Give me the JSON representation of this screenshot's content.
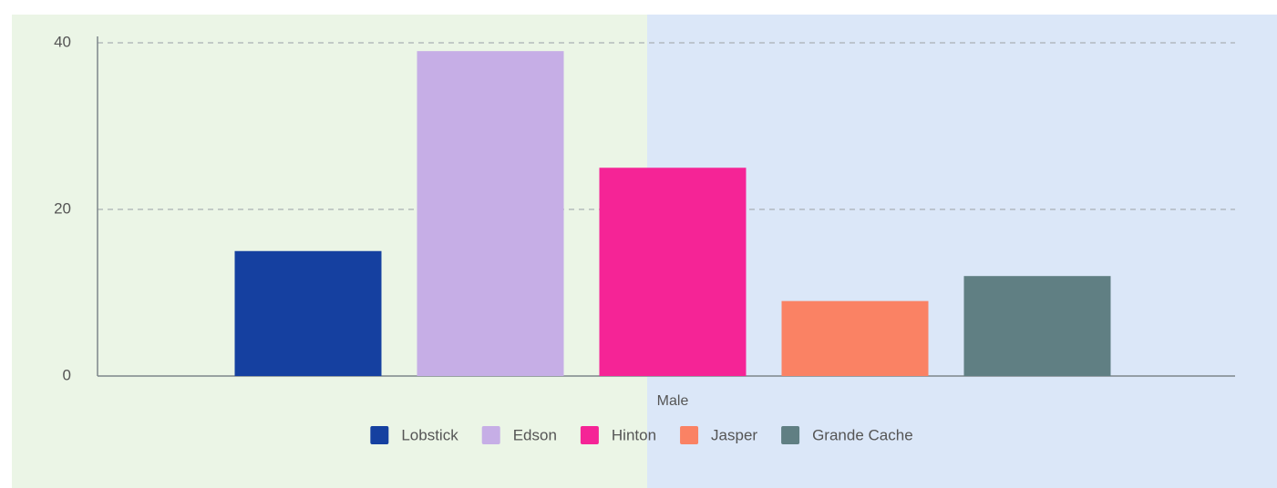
{
  "chart_data": {
    "type": "bar",
    "categories": [
      "Male"
    ],
    "series": [
      {
        "name": "Lobstick",
        "color": "#1540a0",
        "values": [
          15
        ]
      },
      {
        "name": "Edson",
        "color": "#c6aee6",
        "values": [
          39
        ]
      },
      {
        "name": "Hinton",
        "color": "#f52496",
        "values": [
          25
        ]
      },
      {
        "name": "Jasper",
        "color": "#fa8264",
        "values": [
          9
        ]
      },
      {
        "name": "Grande Cache",
        "color": "#607f83",
        "values": [
          12
        ]
      }
    ],
    "ylim": [
      0,
      40
    ],
    "yticks": [
      0,
      20,
      40
    ],
    "grid": true,
    "legend": "bottom"
  }
}
